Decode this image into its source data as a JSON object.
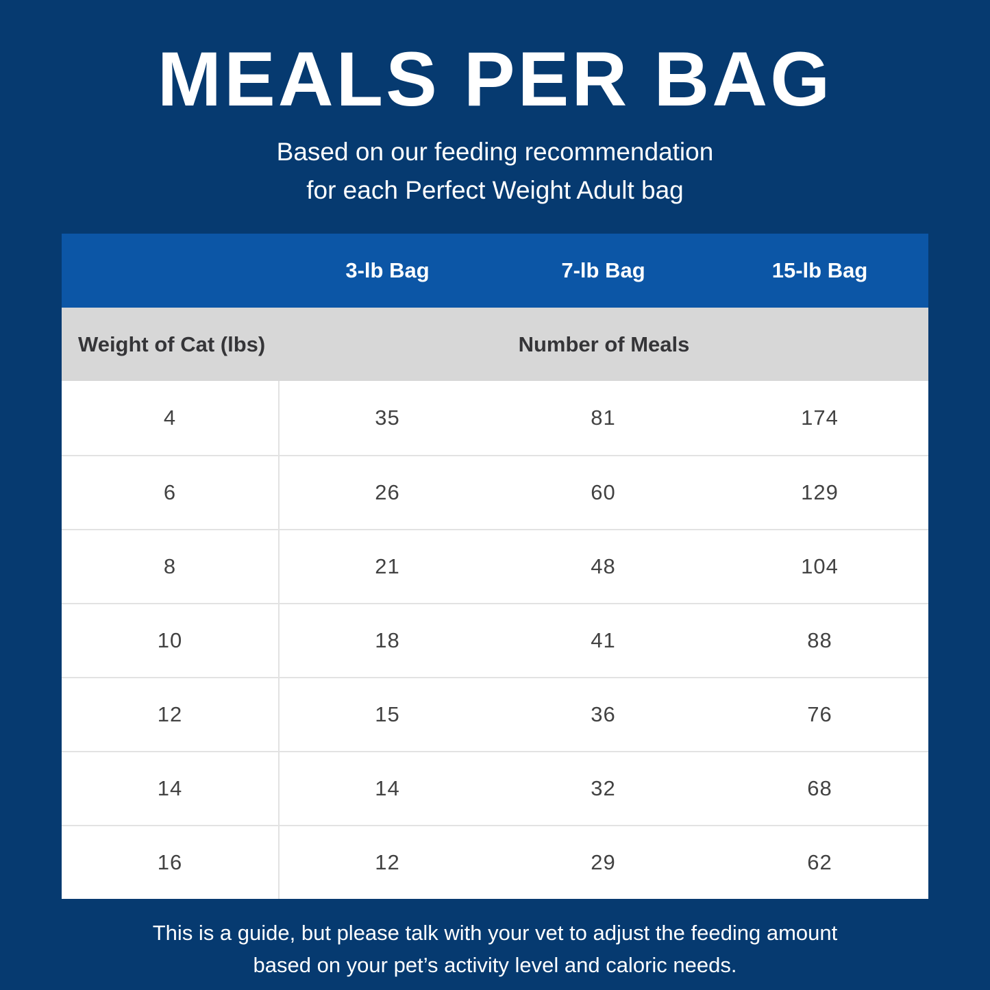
{
  "title": "MEALS PER BAG",
  "subtitle": {
    "line1": "Based on our feeding recommendation",
    "line2": "for each Perfect Weight Adult bag"
  },
  "table": {
    "bag_headers": [
      "3-lb Bag",
      "7-lb Bag",
      "15-lb Bag"
    ],
    "row_header_left": "Weight of Cat (lbs)",
    "row_header_right": "Number of Meals",
    "rows": [
      {
        "weight": "4",
        "meals": [
          "35",
          "81",
          "174"
        ]
      },
      {
        "weight": "6",
        "meals": [
          "26",
          "60",
          "129"
        ]
      },
      {
        "weight": "8",
        "meals": [
          "21",
          "48",
          "104"
        ]
      },
      {
        "weight": "10",
        "meals": [
          "18",
          "41",
          "88"
        ]
      },
      {
        "weight": "12",
        "meals": [
          "15",
          "36",
          "76"
        ]
      },
      {
        "weight": "14",
        "meals": [
          "14",
          "32",
          "68"
        ]
      },
      {
        "weight": "16",
        "meals": [
          "12",
          "29",
          "62"
        ]
      }
    ]
  },
  "footer": {
    "line1": "This is a guide, but please talk with your vet to adjust the feeding amount",
    "line2": "based on your pet’s activity level and caloric needs."
  },
  "colors": {
    "background_navy": "#063a70",
    "header_blue": "#0c56a6",
    "subheader_gray": "#d7d7d7",
    "row_white": "#ffffff",
    "divider_gray": "#e2e2e2",
    "label_dark": "#353538",
    "value_dark": "#424242",
    "text_white": "#ffffff"
  }
}
